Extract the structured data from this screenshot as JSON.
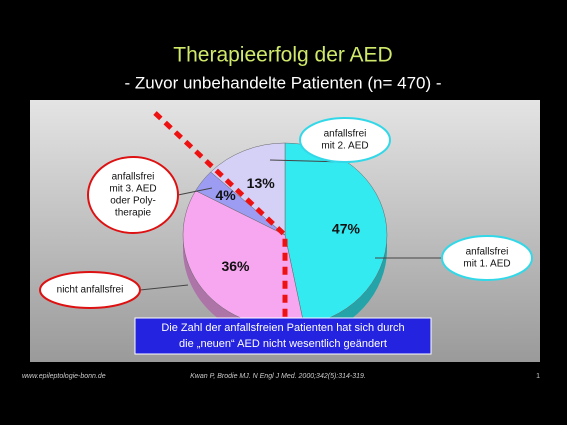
{
  "chart_data": {
    "type": "pie",
    "title": "Therapieerfolg der AED",
    "subtitle": "- Zuvor unbehandelte Patienten (n= 470) -",
    "categories": [
      [
        "anfallsfrei",
        "mit 1. AED"
      ],
      [
        "nicht anfallsfrei"
      ],
      [
        "anfallsfrei",
        "mit 3. AED",
        "oder Poly-",
        "therapie"
      ],
      [
        "anfallsfrei",
        "mit 2. AED"
      ]
    ],
    "values": [
      47,
      36,
      4,
      13
    ],
    "value_labels": [
      "47%",
      "36%",
      "4%",
      "13%"
    ],
    "colors": [
      "#33eaf0",
      "#f7a6f0",
      "#9c9cf2",
      "#d4d0f6"
    ],
    "note": [
      "Die Zahl der anfallsfreien Patienten hat sich durch",
      "die „neuen“ AED nicht wesentlich geändert"
    ],
    "footer": {
      "left": "www.epileptologie-bonn.de",
      "center": "Kwan P, Brodie MJ. N Engl J Med. 2000;342(5):314-319.",
      "right": "1"
    }
  }
}
